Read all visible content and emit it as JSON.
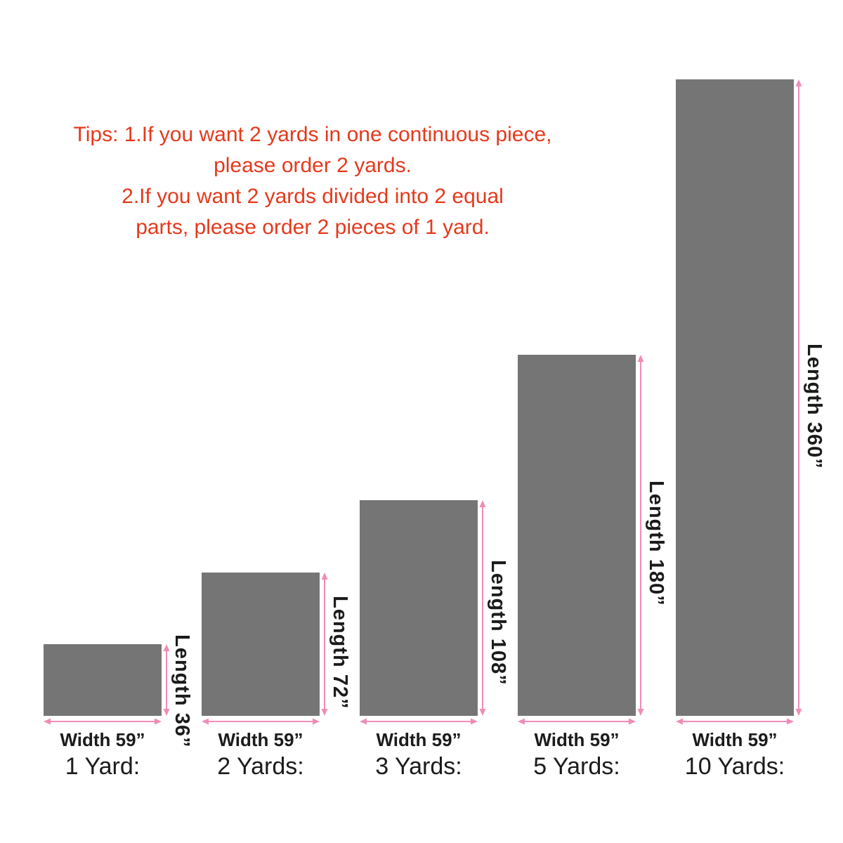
{
  "colors": {
    "background": "#ffffff",
    "bar_fill": "#757575",
    "dimension_arrow": "#f08cb8",
    "tips_text": "#e5391c",
    "label_text": "#1b1b1b"
  },
  "tips": {
    "lines": [
      "Tips: 1.If you want 2 yards in one continuous piece,",
      "please order 2 yards.",
      "2.If you want 2 yards divided into 2 equal",
      "parts, please order 2 pieces of 1 yard."
    ]
  },
  "figures": [
    {
      "label": "1 Yard:",
      "width_label": "Width 59”",
      "length_label": "Length 36”",
      "width_inches": 59,
      "length_inches": 36
    },
    {
      "label": "2 Yards:",
      "width_label": "Width 59”",
      "length_label": "Length 72”",
      "width_inches": 59,
      "length_inches": 72
    },
    {
      "label": "3 Yards:",
      "width_label": "Width 59”",
      "length_label": "Length 108”",
      "width_inches": 59,
      "length_inches": 108
    },
    {
      "label": "5 Yards:",
      "width_label": "Width 59”",
      "length_label": "Length 180”",
      "width_inches": 59,
      "length_inches": 180
    },
    {
      "label": "10 Yards:",
      "width_label": "Width 59”",
      "length_label": "Length 360”",
      "width_inches": 59,
      "length_inches": 360
    }
  ]
}
